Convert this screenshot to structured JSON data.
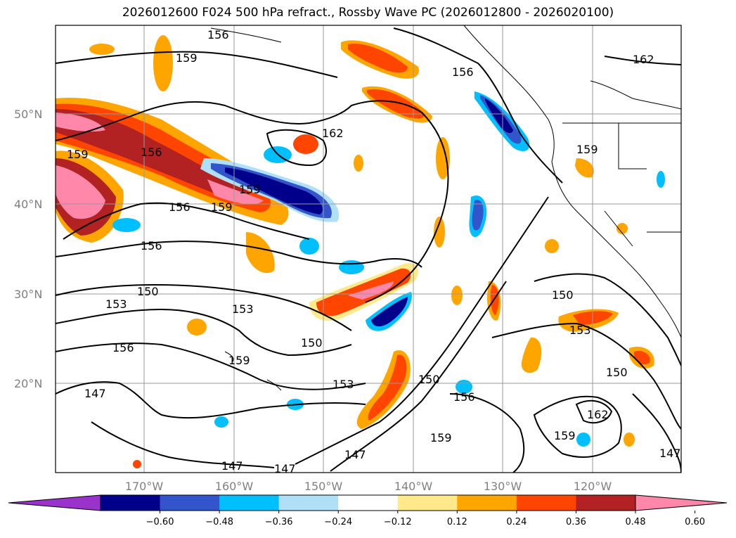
{
  "title": "2026012600 F024 500 hPa refract., Rossby Wave PC (2026012800 - 2026020100)",
  "lat_labels": [
    "50°N",
    "40°N",
    "30°N",
    "20°N"
  ],
  "lon_labels": [
    "170°W",
    "160°W",
    "150°W",
    "140°W",
    "130°W",
    "120°W"
  ],
  "contour_labels": [
    "156",
    "159",
    "162",
    "159",
    "156",
    "156",
    "159",
    "159",
    "156",
    "150",
    "153",
    "153",
    "156",
    "159",
    "150",
    "153",
    "147",
    "147",
    "147",
    "147",
    "150",
    "156",
    "159",
    "162",
    "159",
    "153",
    "150",
    "147",
    "150",
    "162",
    "159",
    "156"
  ],
  "colorbar": {
    "ticks": [
      "−0.60",
      "−0.48",
      "−0.36",
      "−0.24",
      "−0.12",
      "0.12",
      "0.24",
      "0.36",
      "0.48",
      "0.60"
    ],
    "colors": [
      "#9933cc",
      "#00008b",
      "#3355cc",
      "#00bfff",
      "#b0e0f8",
      "#ffffff",
      "#ffe98a",
      "#ffa500",
      "#ff4500",
      "#b22222",
      "#ff88aa"
    ]
  }
}
